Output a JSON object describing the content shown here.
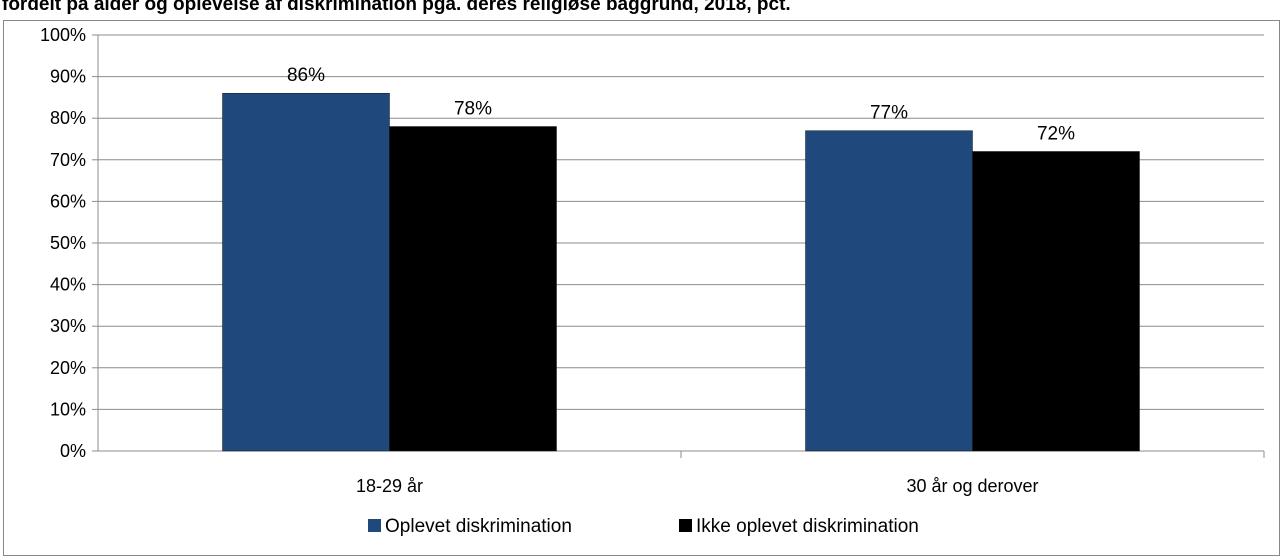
{
  "title": "fordelt på alder og oplevelse af diskrimination pga. deres religiøse baggrund, 2018, pct.",
  "chart_data": {
    "type": "bar",
    "title": "fordelt på alder og oplevelse af diskrimination pga. deres religiøse baggrund, 2018, pct.",
    "categories": [
      "18-29 år",
      "30 år og derover"
    ],
    "series": [
      {
        "name": "Oplevet diskrimination",
        "values": [
          86,
          77
        ],
        "color": "#1f497d"
      },
      {
        "name": "Ikke oplevet diskrimination",
        "values": [
          78,
          72
        ],
        "color": "#000000"
      }
    ],
    "value_labels": [
      [
        "86%",
        "77%"
      ],
      [
        "78%",
        "72%"
      ]
    ],
    "ylim": [
      0,
      100
    ],
    "yticks": [
      "0%",
      "10%",
      "20%",
      "30%",
      "40%",
      "50%",
      "60%",
      "70%",
      "80%",
      "90%",
      "100%"
    ],
    "xlabel": "",
    "ylabel": "",
    "grid": true,
    "legend_position": "bottom"
  }
}
